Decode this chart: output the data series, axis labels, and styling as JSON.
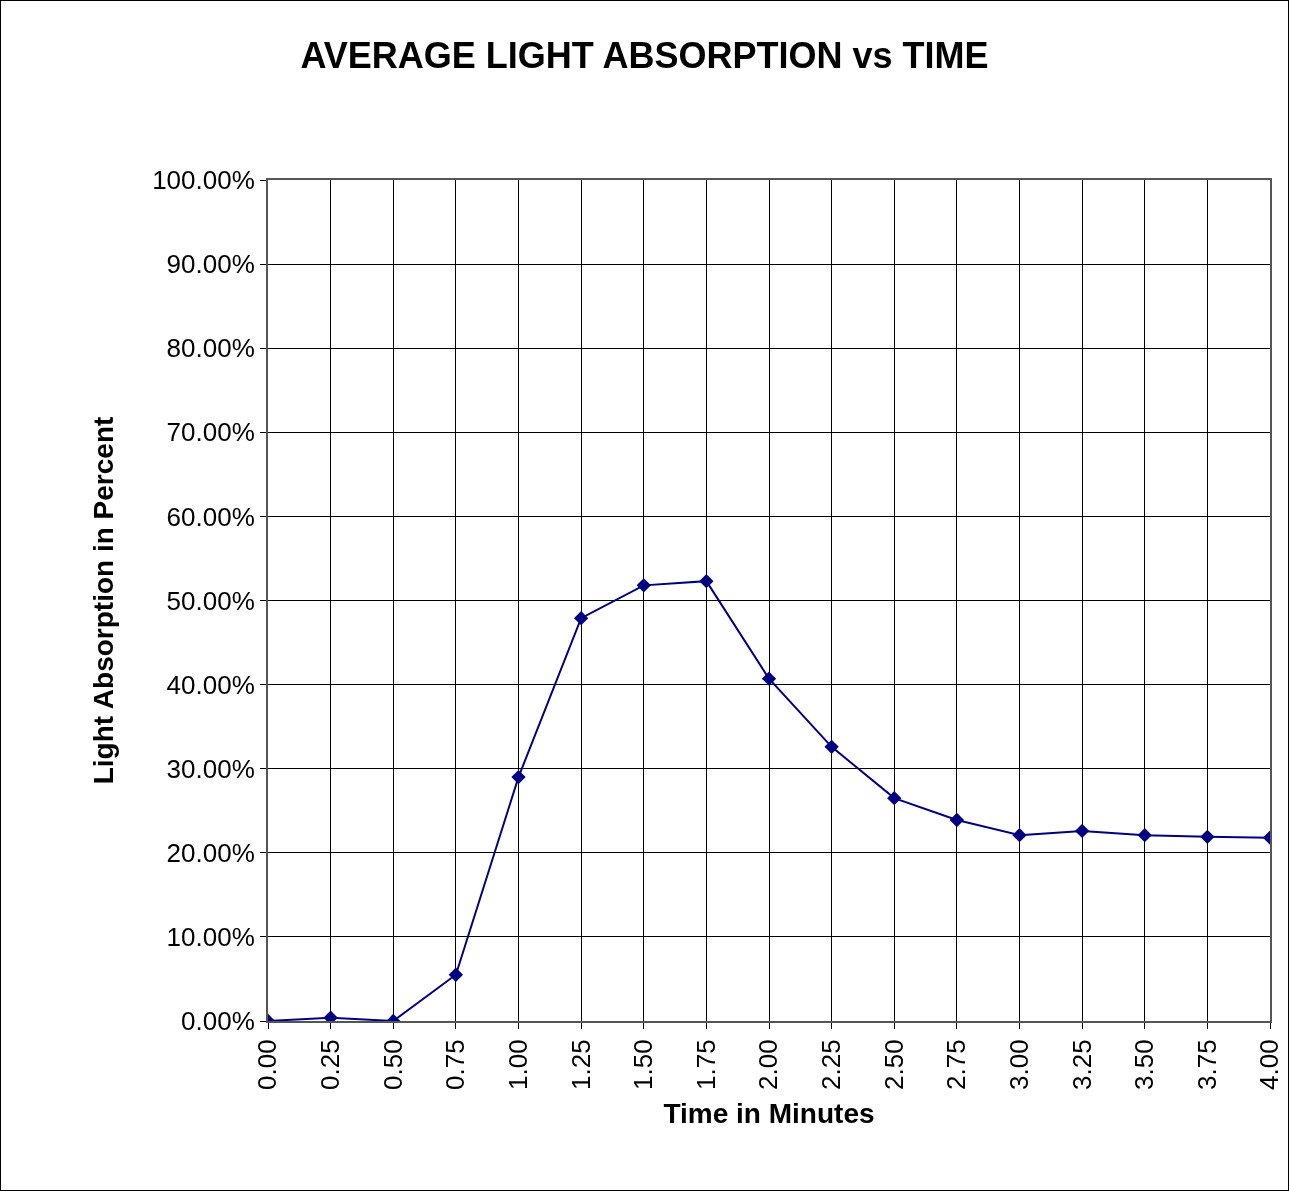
{
  "chart_data": {
    "type": "line",
    "title": "AVERAGE LIGHT ABSORPTION vs TIME",
    "xlabel": "Time in Minutes",
    "ylabel": "Light Absorption in Percent",
    "x": [
      0,
      0.25,
      0.5,
      0.75,
      1,
      1.25,
      1.5,
      1.75,
      2,
      2.25,
      2.5,
      2.75,
      3,
      3.25,
      3.5,
      3.75,
      4
    ],
    "series": [
      {
        "color": "#000080",
        "values": [
          0,
          0.4,
          0,
          5.5,
          29.0,
          47.9,
          51.8,
          52.3,
          40.7,
          32.6,
          26.5,
          23.9,
          22.1,
          22.6,
          22.1,
          21.9,
          21.8
        ]
      }
    ],
    "xlim": [
      0,
      4
    ],
    "xticks": [
      {
        "value": 0,
        "label": "0.00"
      },
      {
        "value": 0.25,
        "label": "0.25"
      },
      {
        "value": 0.5,
        "label": "0.50"
      },
      {
        "value": 0.75,
        "label": "0.75"
      },
      {
        "value": 1,
        "label": "1.00"
      },
      {
        "value": 1.25,
        "label": "1.25"
      },
      {
        "value": 1.5,
        "label": "1.50"
      },
      {
        "value": 1.75,
        "label": "1.75"
      },
      {
        "value": 2,
        "label": "2.00"
      },
      {
        "value": 2.25,
        "label": "2.25"
      },
      {
        "value": 2.5,
        "label": "2.50"
      },
      {
        "value": 2.75,
        "label": "2.75"
      },
      {
        "value": 3,
        "label": "3.00"
      },
      {
        "value": 3.25,
        "label": "3.25"
      },
      {
        "value": 3.5,
        "label": "3.50"
      },
      {
        "value": 3.75,
        "label": "3.75"
      },
      {
        "value": 4,
        "label": "4.00"
      }
    ],
    "ylim": [
      0,
      100
    ],
    "yticks": [
      {
        "value": 0,
        "label": "0.00%"
      },
      {
        "value": 10,
        "label": "10.00%"
      },
      {
        "value": 20,
        "label": "20.00%"
      },
      {
        "value": 30,
        "label": "30.00%"
      },
      {
        "value": 40,
        "label": "40.00%"
      },
      {
        "value": 50,
        "label": "50.00%"
      },
      {
        "value": 60,
        "label": "60.00%"
      },
      {
        "value": 70,
        "label": "70.00%"
      },
      {
        "value": 80,
        "label": "80.00%"
      },
      {
        "value": 90,
        "label": "90.00%"
      },
      {
        "value": 100,
        "label": "100.00%"
      }
    ],
    "grid": true,
    "marker": "diamond",
    "line_style": "solid"
  }
}
